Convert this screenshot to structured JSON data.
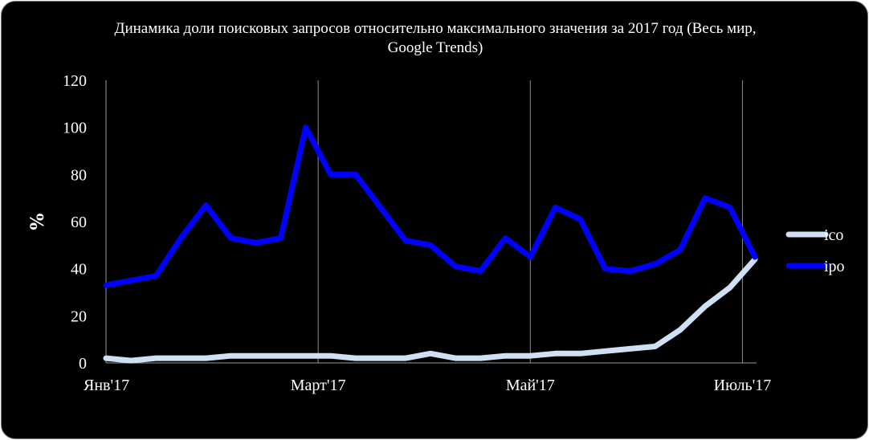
{
  "chart_data": {
    "type": "line",
    "title": "Динамика доли поисковых запросов относительно максимального значения за 2017 год (Весь мир, Google Trends)",
    "ylabel": "%",
    "xlabel": "",
    "ylim": [
      0,
      120
    ],
    "yticks": [
      "0",
      "20",
      "40",
      "60",
      "80",
      "100",
      "120"
    ],
    "x_tick_labels": [
      {
        "label": "Янв'17",
        "index": 0
      },
      {
        "label": "Март'17",
        "index": 8.5
      },
      {
        "label": "Май'17",
        "index": 17
      },
      {
        "label": "Июль'17",
        "index": 25.5
      }
    ],
    "n_points": 27,
    "grid": true,
    "legend_position": "right",
    "series": [
      {
        "name": "ico",
        "color": "#cfe0f5",
        "values": [
          2,
          1,
          2,
          2,
          2,
          3,
          3,
          3,
          3,
          3,
          2,
          2,
          2,
          4,
          2,
          2,
          3,
          3,
          4,
          4,
          5,
          6,
          7,
          14,
          24,
          32,
          44
        ]
      },
      {
        "name": "ipo",
        "color": "#0000ff",
        "values": [
          33,
          35,
          37,
          53,
          67,
          53,
          51,
          53,
          100,
          80,
          80,
          66,
          52,
          50,
          41,
          39,
          53,
          45,
          66,
          61,
          40,
          39,
          42,
          48,
          70,
          66,
          45
        ]
      }
    ]
  }
}
